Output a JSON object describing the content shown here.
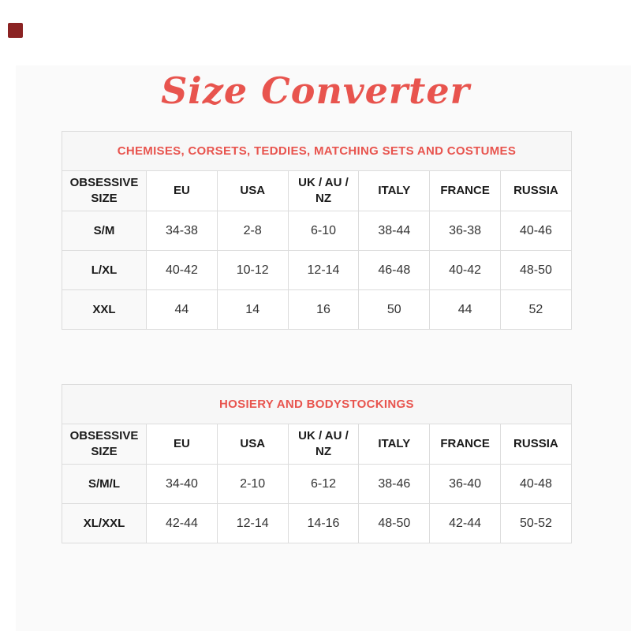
{
  "page": {
    "title": "Size Converter",
    "accent_color": "#e8544e",
    "logo_color": "#8b2323"
  },
  "tables": [
    {
      "caption": "CHEMISES, CORSETS, TEDDIES, MATCHING SETS AND COSTUMES",
      "columns": [
        "OBSESSIVE SIZE",
        "EU",
        "USA",
        "UK / AU / NZ",
        "ITALY",
        "FRANCE",
        "RUSSIA"
      ],
      "rows": [
        [
          "S/M",
          "34-38",
          "2-8",
          "6-10",
          "38-44",
          "36-38",
          "40-46"
        ],
        [
          "L/XL",
          "40-42",
          "10-12",
          "12-14",
          "46-48",
          "40-42",
          "48-50"
        ],
        [
          "XXL",
          "44",
          "14",
          "16",
          "50",
          "44",
          "52"
        ]
      ]
    },
    {
      "caption": "HOSIERY AND BODYSTOCKINGS",
      "columns": [
        "OBSESSIVE SIZE",
        "EU",
        "USA",
        "UK / AU / NZ",
        "ITALY",
        "FRANCE",
        "RUSSIA"
      ],
      "rows": [
        [
          "S/M/L",
          "34-40",
          "2-10",
          "6-12",
          "38-46",
          "36-40",
          "40-48"
        ],
        [
          "XL/XXL",
          "42-44",
          "12-14",
          "14-16",
          "48-50",
          "42-44",
          "50-52"
        ]
      ]
    }
  ]
}
